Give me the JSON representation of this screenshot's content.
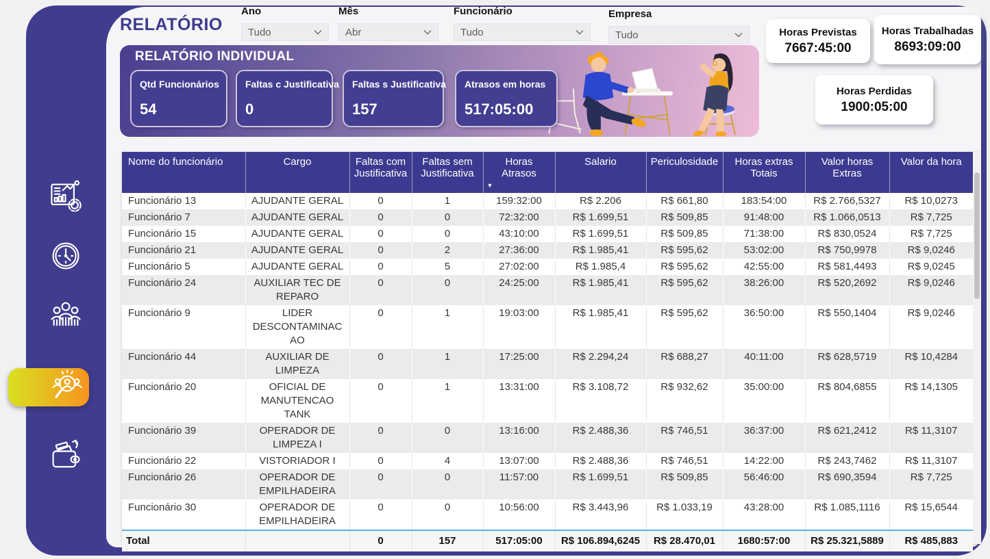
{
  "header": {
    "title": "RELATÓRIO"
  },
  "filters": {
    "items": [
      {
        "label": "Ano",
        "value": "Tudo",
        "icon": "chevron-down-icon"
      },
      {
        "label": "Mês",
        "value": "Abr",
        "icon": "chevron-down-icon"
      },
      {
        "label": "Funcionário",
        "value": "Tudo",
        "icon": "chevron-down-icon"
      },
      {
        "label": "Empresa",
        "value": "Tudo",
        "icon": "chevron-down-icon"
      }
    ]
  },
  "kpis": {
    "previstas": {
      "label": "Horas Previstas",
      "value": "7667:45:00"
    },
    "trabalhadas": {
      "label": "Horas Trabalhadas",
      "value": "8693:09:00"
    },
    "perdidas": {
      "label": "Horas Perdidas",
      "value": "1900:05:00"
    }
  },
  "banner": {
    "title": "RELATÓRIO INDIVIDUAL",
    "cards": [
      {
        "label": "Qtd Funcionários",
        "value": "54"
      },
      {
        "label": "Faltas c Justificativa",
        "value": "0"
      },
      {
        "label": "Faltas s Justificativa",
        "value": "157"
      },
      {
        "label": "Atrasos em horas",
        "value": "517:05:00"
      }
    ]
  },
  "table": {
    "columns": [
      "Nome do funcionário",
      "Cargo",
      "Faltas com Justificativa",
      "Faltas sem Justificativa",
      "Horas Atrasos",
      "Salario",
      "Periculosidade",
      "Horas extras Totais",
      "Valor horas Extras",
      "Valor da hora"
    ],
    "sort_column": "Horas Atrasos",
    "sort_direction": "desc",
    "rows": [
      [
        "Funcionário 13",
        "AJUDANTE GERAL",
        "0",
        "1",
        "159:32:00",
        "R$ 2.206",
        "R$ 661,80",
        "183:54:00",
        "R$ 2.766,5327",
        "R$ 10,0273"
      ],
      [
        "Funcionário 7",
        "AJUDANTE GERAL",
        "0",
        "0",
        "72:32:00",
        "R$ 1.699,51",
        "R$ 509,85",
        "91:48:00",
        "R$ 1.066,0513",
        "R$ 7,725"
      ],
      [
        "Funcionário 15",
        "AJUDANTE GERAL",
        "0",
        "0",
        "43:10:00",
        "R$ 1.699,51",
        "R$ 509,85",
        "71:38:00",
        "R$ 830,0524",
        "R$ 7,725"
      ],
      [
        "Funcionário 21",
        "AJUDANTE GERAL",
        "0",
        "2",
        "27:36:00",
        "R$ 1.985,41",
        "R$ 595,62",
        "53:02:00",
        "R$ 750,9978",
        "R$ 9,0246"
      ],
      [
        "Funcionário 5",
        "AJUDANTE GERAL",
        "0",
        "5",
        "27:02:00",
        "R$ 1.985,4",
        "R$ 595,62",
        "42:55:00",
        "R$ 581,4493",
        "R$ 9,0245"
      ],
      [
        "Funcionário 24",
        "AUXILIAR TEC DE REPARO",
        "0",
        "0",
        "24:25:00",
        "R$ 1.985,41",
        "R$ 595,62",
        "38:26:00",
        "R$ 520,2692",
        "R$ 9,0246"
      ],
      [
        "Funcionário 9",
        "LIDER DESCONTAMINACAO",
        "0",
        "1",
        "19:03:00",
        "R$ 1.985,41",
        "R$ 595,62",
        "36:50:00",
        "R$ 550,1404",
        "R$ 9,0246"
      ],
      [
        "Funcionário 44",
        "AUXILIAR DE LIMPEZA",
        "0",
        "1",
        "17:25:00",
        "R$ 2.294,24",
        "R$ 688,27",
        "40:11:00",
        "R$ 628,5719",
        "R$ 10,4284"
      ],
      [
        "Funcionário 20",
        "OFICIAL DE MANUTENCAO TANK",
        "0",
        "1",
        "13:31:00",
        "R$ 3.108,72",
        "R$ 932,62",
        "35:00:00",
        "R$ 804,6855",
        "R$ 14,1305"
      ],
      [
        "Funcionário 39",
        "OPERADOR DE LIMPEZA I",
        "0",
        "0",
        "13:16:00",
        "R$ 2.488,36",
        "R$ 746,51",
        "36:37:00",
        "R$ 621,2412",
        "R$ 11,3107"
      ],
      [
        "Funcionário 22",
        "VISTORIADOR I",
        "0",
        "4",
        "13:07:00",
        "R$ 2.488,36",
        "R$ 746,51",
        "14:22:00",
        "R$ 243,7462",
        "R$ 11,3107"
      ],
      [
        "Funcionário 26",
        "OPERADOR DE EMPILHADEIRA",
        "0",
        "0",
        "11:57:00",
        "R$ 1.699,51",
        "R$ 509,85",
        "56:46:00",
        "R$ 690,3594",
        "R$ 7,725"
      ],
      [
        "Funcionário 30",
        "OPERADOR DE EMPILHADEIRA",
        "0",
        "0",
        "10:56:00",
        "R$ 3.443,96",
        "R$ 1.033,19",
        "43:28:00",
        "R$ 1.085,1116",
        "R$ 15,6544"
      ]
    ],
    "total_row": [
      "Total",
      "",
      "0",
      "157",
      "517:05:00",
      "R$ 106.894,6245",
      "R$ 28.470,01",
      "1680:57:00",
      "R$ 25.321,5889",
      "R$ 485,883"
    ]
  },
  "sidebar": {
    "items": [
      {
        "icon": "report-dashboard-icon",
        "active": false
      },
      {
        "icon": "clock-icon",
        "active": false
      },
      {
        "icon": "team-icon",
        "active": false
      },
      {
        "icon": "people-search-icon",
        "active": true
      },
      {
        "icon": "wallet-icon",
        "active": false
      }
    ]
  },
  "colors": {
    "purple": "#403c8e",
    "table_header": "#3b3a90",
    "banner_gradient_start": "#4a3f90",
    "banner_gradient_end": "#eebcd8",
    "active_gradient_start": "#d9e021",
    "active_gradient_end": "#f7941e",
    "total_divider_blue": "#5fb0e0"
  }
}
